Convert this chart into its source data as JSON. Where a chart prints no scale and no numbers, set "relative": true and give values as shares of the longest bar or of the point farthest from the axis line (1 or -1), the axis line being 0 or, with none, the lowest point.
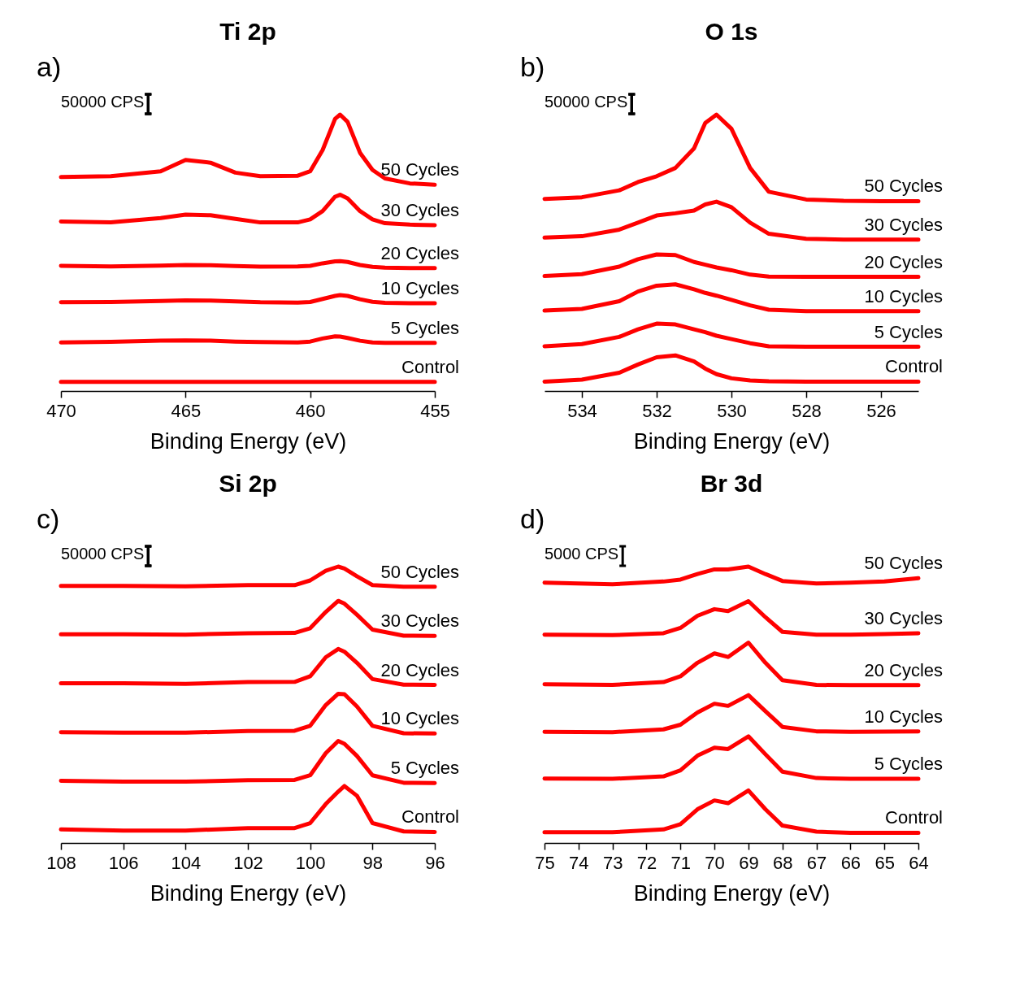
{
  "chart_data": [
    {
      "type": "line",
      "title": "Ti 2p",
      "xlabel": "Binding Energy (eV)",
      "relative": true,
      "annotations": [
        "a)",
        "50000 CPS"
      ],
      "xlim": [
        470,
        455
      ],
      "xticks": [
        470,
        465,
        460,
        455
      ],
      "x": [
        470,
        468,
        466,
        465,
        464,
        463,
        462,
        460.5,
        460,
        459.5,
        459,
        458.8,
        458.5,
        458,
        457.5,
        457,
        456,
        455
      ],
      "series": [
        {
          "name": "50 Cycles",
          "color": "#ff0000",
          "values": [
            0.774,
            0.777,
            0.795,
            0.836,
            0.826,
            0.79,
            0.777,
            0.779,
            0.795,
            0.872,
            0.985,
            1.0,
            0.974,
            0.862,
            0.8,
            0.769,
            0.751,
            0.746
          ]
        },
        {
          "name": "30 Cycles",
          "color": "#ff0000",
          "values": [
            0.613,
            0.61,
            0.626,
            0.638,
            0.636,
            0.623,
            0.61,
            0.61,
            0.621,
            0.651,
            0.703,
            0.71,
            0.697,
            0.651,
            0.621,
            0.607,
            0.602,
            0.6
          ]
        },
        {
          "name": "20 Cycles",
          "color": "#ff0000",
          "values": [
            0.453,
            0.451,
            0.454,
            0.456,
            0.455,
            0.452,
            0.45,
            0.451,
            0.453,
            0.462,
            0.469,
            0.47,
            0.467,
            0.456,
            0.449,
            0.446,
            0.445,
            0.445
          ]
        },
        {
          "name": "10 Cycles",
          "color": "#ff0000",
          "values": [
            0.321,
            0.322,
            0.326,
            0.328,
            0.327,
            0.324,
            0.321,
            0.32,
            0.322,
            0.333,
            0.344,
            0.347,
            0.344,
            0.332,
            0.323,
            0.319,
            0.318,
            0.318
          ]
        },
        {
          "name": "5 Cycles",
          "color": "#ff0000",
          "values": [
            0.176,
            0.178,
            0.182,
            0.183,
            0.182,
            0.179,
            0.177,
            0.176,
            0.179,
            0.19,
            0.198,
            0.197,
            0.192,
            0.182,
            0.176,
            0.174,
            0.174,
            0.174
          ]
        },
        {
          "name": "Control",
          "color": "#ff0000",
          "values": [
            0.033,
            0.033,
            0.033,
            0.033,
            0.033,
            0.033,
            0.033,
            0.033,
            0.033,
            0.033,
            0.033,
            0.033,
            0.033,
            0.033,
            0.033,
            0.033,
            0.033,
            0.033
          ]
        }
      ]
    },
    {
      "type": "line",
      "title": "O 1s",
      "xlabel": "Binding Energy (eV)",
      "relative": true,
      "annotations": [
        "b)",
        "50000 CPS"
      ],
      "xlim": [
        535,
        525
      ],
      "xticks": [
        534,
        532,
        530,
        528,
        526
      ],
      "x": [
        535,
        534,
        533,
        532.5,
        532,
        531.5,
        531,
        530.7,
        530.4,
        530,
        529.5,
        529,
        528,
        527,
        526,
        525
      ],
      "series": [
        {
          "name": "50 Cycles",
          "color": "#ff0000",
          "values": [
            0.695,
            0.701,
            0.726,
            0.756,
            0.777,
            0.807,
            0.878,
            0.97,
            1.0,
            0.949,
            0.807,
            0.721,
            0.693,
            0.688,
            0.687,
            0.687
          ]
        },
        {
          "name": "30 Cycles",
          "color": "#ff0000",
          "values": [
            0.555,
            0.56,
            0.584,
            0.609,
            0.635,
            0.643,
            0.653,
            0.675,
            0.685,
            0.665,
            0.609,
            0.569,
            0.551,
            0.548,
            0.548,
            0.548
          ]
        },
        {
          "name": "20 Cycles",
          "color": "#ff0000",
          "values": [
            0.416,
            0.423,
            0.45,
            0.477,
            0.494,
            0.492,
            0.467,
            0.457,
            0.447,
            0.437,
            0.421,
            0.414,
            0.413,
            0.413,
            0.413,
            0.413
          ]
        },
        {
          "name": "10 Cycles",
          "color": "#ff0000",
          "values": [
            0.291,
            0.297,
            0.325,
            0.36,
            0.381,
            0.386,
            0.368,
            0.355,
            0.345,
            0.33,
            0.31,
            0.294,
            0.289,
            0.289,
            0.289,
            0.289
          ]
        },
        {
          "name": "5 Cycles",
          "color": "#ff0000",
          "values": [
            0.162,
            0.17,
            0.196,
            0.223,
            0.244,
            0.241,
            0.223,
            0.213,
            0.2,
            0.188,
            0.173,
            0.162,
            0.16,
            0.16,
            0.16,
            0.16
          ]
        },
        {
          "name": "Control",
          "color": "#ff0000",
          "values": [
            0.034,
            0.041,
            0.066,
            0.096,
            0.122,
            0.129,
            0.107,
            0.081,
            0.061,
            0.046,
            0.038,
            0.035,
            0.034,
            0.034,
            0.034,
            0.034
          ]
        }
      ]
    },
    {
      "type": "line",
      "title": "Si 2p",
      "xlabel": "Binding Energy (eV)",
      "relative": true,
      "annotations": [
        "c)",
        "50000 CPS"
      ],
      "xlim": [
        108,
        96
      ],
      "xticks": [
        108,
        106,
        104,
        102,
        100,
        98,
        96
      ],
      "x": [
        108,
        106,
        104,
        102,
        100.5,
        100,
        99.5,
        99.1,
        98.9,
        98.5,
        98,
        97,
        96
      ],
      "series": [
        {
          "name": "50 Cycles",
          "color": "#ff0000",
          "values": [
            0.93,
            0.93,
            0.929,
            0.933,
            0.933,
            0.95,
            0.985,
            1.0,
            0.993,
            0.965,
            0.933,
            0.927,
            0.927
          ]
        },
        {
          "name": "30 Cycles",
          "color": "#ff0000",
          "values": [
            0.755,
            0.755,
            0.754,
            0.759,
            0.76,
            0.777,
            0.836,
            0.876,
            0.866,
            0.826,
            0.772,
            0.75,
            0.749
          ]
        },
        {
          "name": "20 Cycles",
          "color": "#ff0000",
          "values": [
            0.578,
            0.578,
            0.576,
            0.582,
            0.583,
            0.603,
            0.672,
            0.702,
            0.692,
            0.652,
            0.593,
            0.573,
            0.572
          ]
        },
        {
          "name": "10 Cycles",
          "color": "#ff0000",
          "values": [
            0.401,
            0.399,
            0.399,
            0.405,
            0.406,
            0.424,
            0.499,
            0.54,
            0.538,
            0.494,
            0.424,
            0.397,
            0.396
          ]
        },
        {
          "name": "5 Cycles",
          "color": "#ff0000",
          "values": [
            0.225,
            0.222,
            0.222,
            0.227,
            0.228,
            0.245,
            0.325,
            0.369,
            0.359,
            0.315,
            0.245,
            0.218,
            0.217
          ]
        },
        {
          "name": "Control",
          "color": "#ff0000",
          "values": [
            0.049,
            0.045,
            0.045,
            0.054,
            0.054,
            0.072,
            0.141,
            0.186,
            0.206,
            0.171,
            0.072,
            0.042,
            0.04
          ]
        }
      ]
    },
    {
      "type": "line",
      "title": "Br 3d",
      "xlabel": "Binding Energy (eV)",
      "relative": true,
      "annotations": [
        "d)",
        "5000 CPS"
      ],
      "xlim": [
        75,
        64
      ],
      "xticks": [
        75,
        74,
        73,
        72,
        71,
        70,
        69,
        68,
        67,
        66,
        65,
        64
      ],
      "x": [
        75,
        73,
        71.5,
        71,
        70.5,
        70,
        69.6,
        69,
        68.5,
        68,
        67,
        66,
        65,
        64
      ],
      "series": [
        {
          "name": "50 Cycles",
          "color": "#ff0000",
          "values": [
            0.942,
            0.936,
            0.946,
            0.953,
            0.973,
            0.99,
            0.99,
            1.0,
            0.973,
            0.948,
            0.939,
            0.942,
            0.946,
            0.958
          ]
        },
        {
          "name": "30 Cycles",
          "color": "#ff0000",
          "values": [
            0.754,
            0.752,
            0.759,
            0.778,
            0.822,
            0.846,
            0.839,
            0.875,
            0.817,
            0.764,
            0.754,
            0.754,
            0.756,
            0.759
          ]
        },
        {
          "name": "20 Cycles",
          "color": "#ff0000",
          "values": [
            0.574,
            0.572,
            0.582,
            0.603,
            0.652,
            0.686,
            0.673,
            0.725,
            0.652,
            0.589,
            0.572,
            0.571,
            0.571,
            0.571
          ]
        },
        {
          "name": "10 Cycles",
          "color": "#ff0000",
          "values": [
            0.402,
            0.401,
            0.411,
            0.428,
            0.472,
            0.504,
            0.496,
            0.535,
            0.477,
            0.42,
            0.404,
            0.402,
            0.403,
            0.404
          ]
        },
        {
          "name": "5 Cycles",
          "color": "#ff0000",
          "values": [
            0.233,
            0.232,
            0.241,
            0.263,
            0.316,
            0.345,
            0.34,
            0.386,
            0.321,
            0.258,
            0.235,
            0.232,
            0.232,
            0.232
          ]
        },
        {
          "name": "Control",
          "color": "#ff0000",
          "values": [
            0.039,
            0.039,
            0.049,
            0.068,
            0.122,
            0.154,
            0.144,
            0.19,
            0.122,
            0.063,
            0.041,
            0.037,
            0.037,
            0.037
          ]
        }
      ]
    }
  ]
}
